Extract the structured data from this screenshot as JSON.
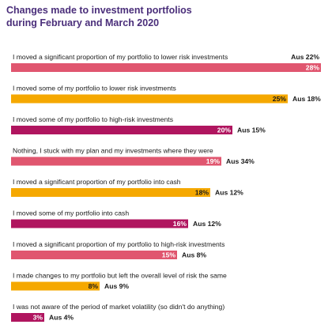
{
  "title_line1": "Changes made to investment portfolios",
  "title_line2": "during February and March 2020",
  "colors": {
    "magenta": "#b0155f",
    "pink": "#e0566f",
    "gold": "#f5a800"
  },
  "chart_data": {
    "type": "bar",
    "orientation": "horizontal",
    "title": "Changes made to investment portfolios during February and March 2020",
    "unit": "%",
    "comparison_label": "Aus",
    "categories": [
      "I moved a significant proportion of my portfolio to lower risk investments",
      "I moved some of my portfolio to lower risk investments",
      "I moved some of my portfolio to high-risk investments",
      "Nothing, I stuck with my plan and my investments where they were",
      "I moved a significant proportion of my portfolio into cash",
      "I moved some of my portfolio into cash",
      "I moved a significant proportion of my portfolio to high-risk investments",
      "I made changes to my portfolio but left the overall level of risk the same",
      "I was not aware of the period of market volatility (so didn't do anything)"
    ],
    "values": [
      28,
      25,
      20,
      19,
      18,
      16,
      15,
      8,
      3
    ],
    "aus_values": [
      22,
      18,
      15,
      34,
      12,
      12,
      8,
      9,
      4
    ],
    "bar_colors": [
      "pink",
      "gold",
      "magenta",
      "pink",
      "gold",
      "magenta",
      "pink",
      "gold",
      "magenta"
    ],
    "xlim": [
      0,
      28
    ]
  }
}
